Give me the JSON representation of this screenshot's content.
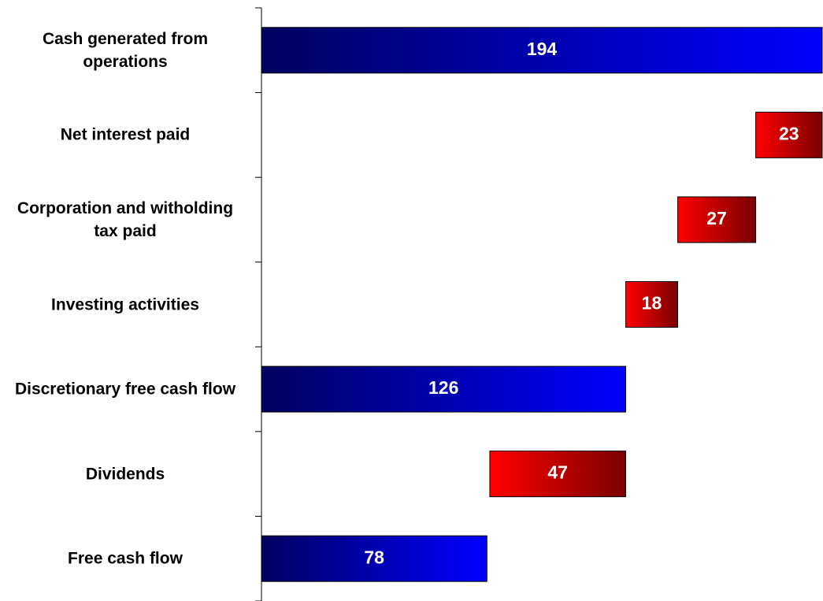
{
  "chart_data": {
    "type": "waterfall",
    "categories": [
      "Cash generated from operations",
      "Net interest paid",
      "Corporation and  witholding tax paid",
      "Investing activities",
      "Discretionary free cash flow",
      "Dividends",
      "Free cash flow"
    ],
    "values": [
      194,
      23,
      27,
      18,
      126,
      47,
      78
    ],
    "measure": [
      "total",
      "decrease",
      "decrease",
      "decrease",
      "total",
      "decrease",
      "total"
    ],
    "total_color": [
      "#000060",
      "#0000ff"
    ],
    "decrease_color": [
      "#ff0000",
      "#7a0000"
    ],
    "xlim": [
      0,
      194
    ]
  }
}
